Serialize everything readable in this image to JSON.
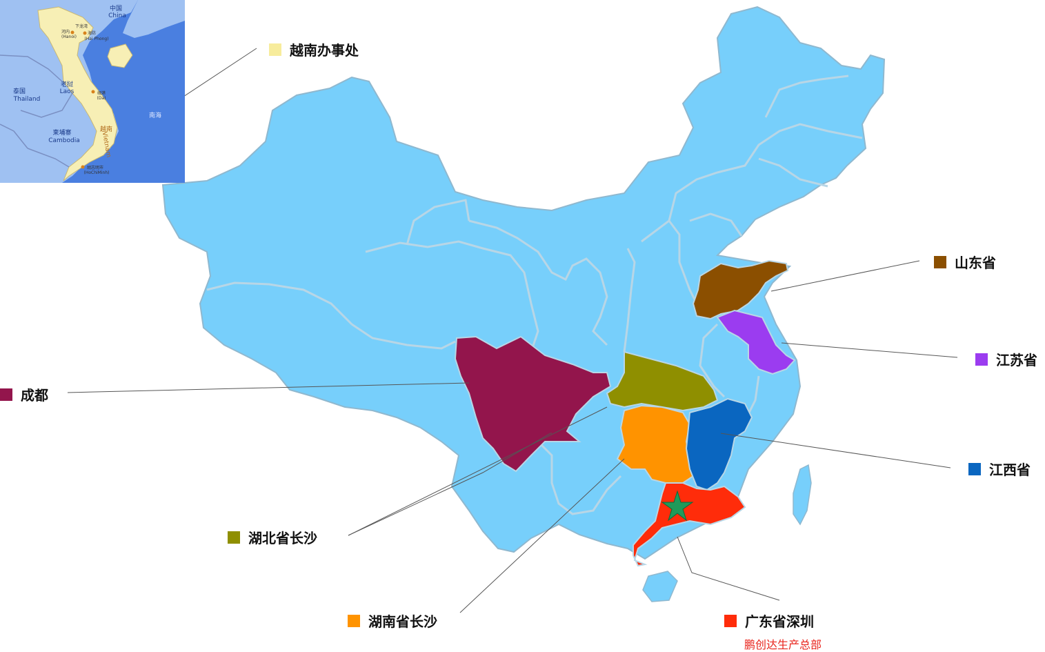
{
  "colors": {
    "land": "#77cffb",
    "border": "#9aaab4",
    "sea_inset": "#4a7fe0",
    "land_inset": "#9fc1f2",
    "vietnam_inset": "#f7efb5",
    "star": "#1f9a5a"
  },
  "regions": [
    {
      "name": "越南办事处",
      "color": "#f7ec9c"
    },
    {
      "name": "山东省",
      "color": "#8b4f00"
    },
    {
      "name": "江苏省",
      "color": "#9b3cf0"
    },
    {
      "name": "成都",
      "color": "#93154c"
    },
    {
      "name": "江西省",
      "color": "#0a66c0"
    },
    {
      "name": "湖北省长沙",
      "color": "#8f8f00"
    },
    {
      "name": "湖南省长沙",
      "color": "#ff9300"
    },
    {
      "name": "广东省深圳",
      "color": "#ff2c0a"
    }
  ],
  "headquarters_note": "鹏创达生产总部",
  "inset": {
    "labels": [
      "中国",
      "China",
      "老挝",
      "Laos",
      "泰国",
      "Thailand",
      "柬埔寨",
      "Cambodia",
      "越南",
      "Vietnam",
      "南海",
      "河内",
      "(Hanoi)",
      "下龙湾",
      "海防",
      "(Hai Phong)",
      "岘港",
      "(Da)",
      "胡志明市",
      "(HoChiMinh)"
    ]
  }
}
